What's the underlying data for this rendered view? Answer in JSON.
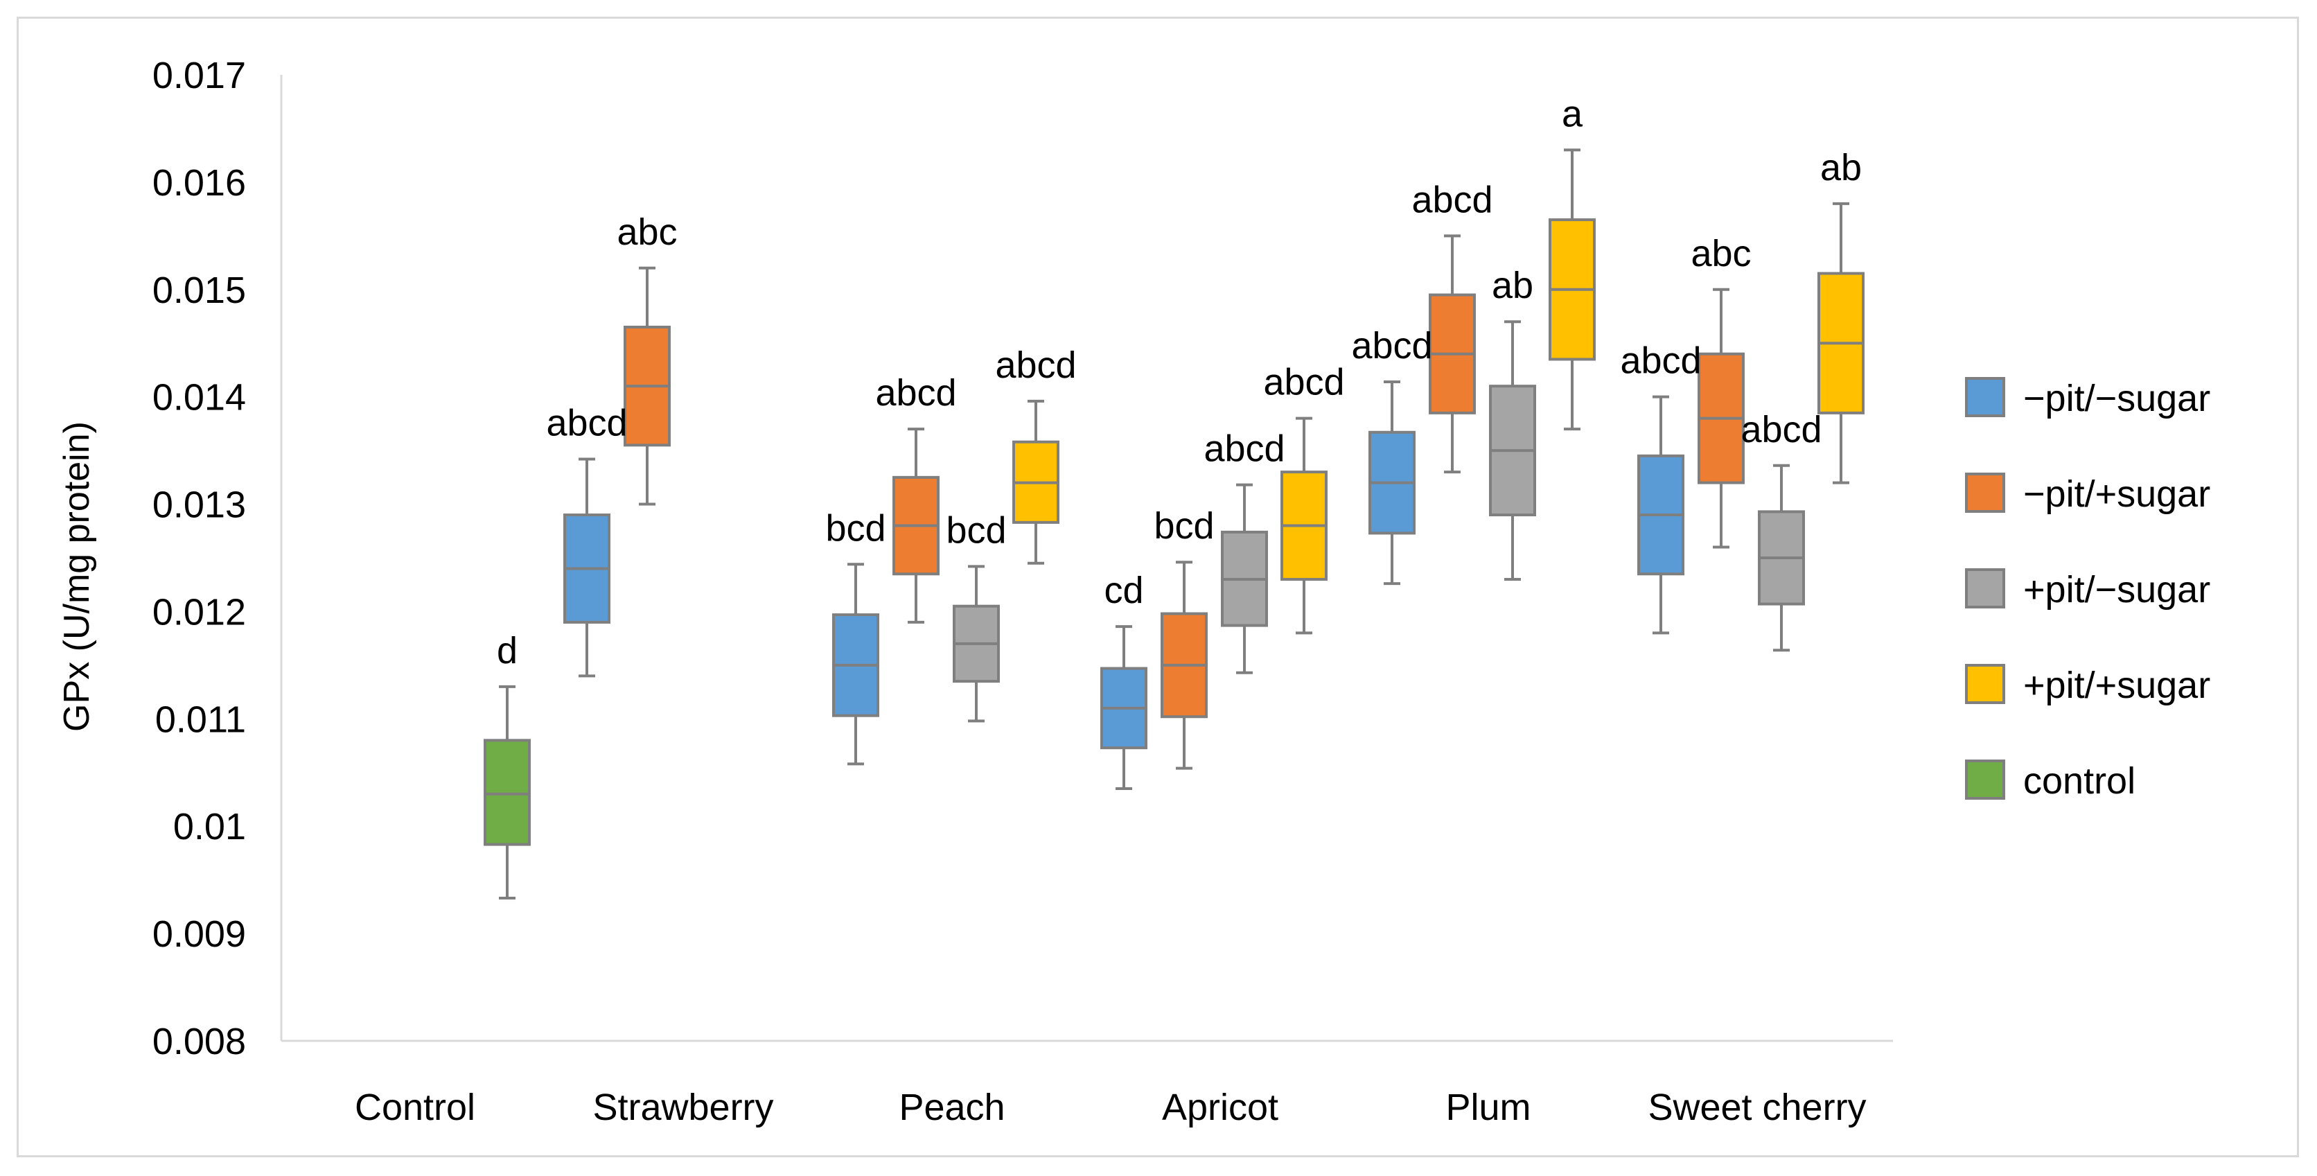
{
  "chart_data": {
    "type": "boxplot",
    "ylabel": "GPx (U/mg protein)",
    "xlabel": "",
    "ylim": [
      0.008,
      0.017
    ],
    "yticks": [
      "0.008",
      "0.009",
      "0.01",
      "0.011",
      "0.012",
      "0.013",
      "0.014",
      "0.015",
      "0.016",
      "0.017"
    ],
    "categories": [
      "Control",
      "Strawberry",
      "Peach",
      "Apricot",
      "Plum",
      "Sweet cherry"
    ],
    "legend_position": "right",
    "series": [
      {
        "key": "mpms",
        "name": "−pit/−sugar",
        "color": "#5b9bd5"
      },
      {
        "key": "mpps",
        "name": "−pit/+sugar",
        "color": "#ed7d31"
      },
      {
        "key": "ppms",
        "name": "+pit/−sugar",
        "color": "#a5a5a5"
      },
      {
        "key": "ppps",
        "name": "+pit/+sugar",
        "color": "#ffc000"
      },
      {
        "key": "ctrl",
        "name": "control",
        "color": "#70ad47"
      }
    ],
    "boxes": [
      {
        "category": "Control",
        "series": "ctrl",
        "min": 0.00933,
        "q1": 0.00983,
        "median": 0.0103,
        "q3": 0.0108,
        "max": 0.0113,
        "label": "d"
      },
      {
        "category": "Strawberry",
        "series": "mpms",
        "min": 0.0114,
        "q1": 0.0119,
        "median": 0.0124,
        "q3": 0.0129,
        "max": 0.01342,
        "label": "abcd"
      },
      {
        "category": "Strawberry",
        "series": "mpps",
        "min": 0.013,
        "q1": 0.01355,
        "median": 0.0141,
        "q3": 0.01465,
        "max": 0.0152,
        "label": "abc"
      },
      {
        "category": "Peach",
        "series": "mpms",
        "min": 0.01058,
        "q1": 0.01103,
        "median": 0.0115,
        "q3": 0.01197,
        "max": 0.01244,
        "label": "bcd"
      },
      {
        "category": "Peach",
        "series": "mpps",
        "min": 0.0119,
        "q1": 0.01235,
        "median": 0.0128,
        "q3": 0.01325,
        "max": 0.0137,
        "label": "abcd"
      },
      {
        "category": "Peach",
        "series": "ppms",
        "min": 0.01098,
        "q1": 0.01135,
        "median": 0.0117,
        "q3": 0.01205,
        "max": 0.01242,
        "label": "bcd"
      },
      {
        "category": "Peach",
        "series": "ppps",
        "min": 0.01245,
        "q1": 0.01283,
        "median": 0.0132,
        "q3": 0.01358,
        "max": 0.01396,
        "label": "abcd"
      },
      {
        "category": "Apricot",
        "series": "mpms",
        "min": 0.01035,
        "q1": 0.01073,
        "median": 0.0111,
        "q3": 0.01147,
        "max": 0.01186,
        "label": "cd"
      },
      {
        "category": "Apricot",
        "series": "mpps",
        "min": 0.01054,
        "q1": 0.01102,
        "median": 0.0115,
        "q3": 0.01198,
        "max": 0.01246,
        "label": "bcd"
      },
      {
        "category": "Apricot",
        "series": "ppms",
        "min": 0.01143,
        "q1": 0.01187,
        "median": 0.0123,
        "q3": 0.01274,
        "max": 0.01318,
        "label": "abcd"
      },
      {
        "category": "Apricot",
        "series": "ppps",
        "min": 0.0118,
        "q1": 0.0123,
        "median": 0.0128,
        "q3": 0.0133,
        "max": 0.0138,
        "label": "abcd"
      },
      {
        "category": "Plum",
        "series": "mpms",
        "min": 0.01226,
        "q1": 0.01273,
        "median": 0.0132,
        "q3": 0.01367,
        "max": 0.01414,
        "label": "abcd"
      },
      {
        "category": "Plum",
        "series": "mpps",
        "min": 0.0133,
        "q1": 0.01385,
        "median": 0.0144,
        "q3": 0.01495,
        "max": 0.0155,
        "label": "abcd"
      },
      {
        "category": "Plum",
        "series": "ppms",
        "min": 0.0123,
        "q1": 0.0129,
        "median": 0.0135,
        "q3": 0.0141,
        "max": 0.0147,
        "label": "ab"
      },
      {
        "category": "Plum",
        "series": "ppps",
        "min": 0.0137,
        "q1": 0.01435,
        "median": 0.015,
        "q3": 0.01565,
        "max": 0.0163,
        "label": "a"
      },
      {
        "category": "Sweet cherry",
        "series": "mpms",
        "min": 0.0118,
        "q1": 0.01235,
        "median": 0.0129,
        "q3": 0.01345,
        "max": 0.014,
        "label": "abcd"
      },
      {
        "category": "Sweet cherry",
        "series": "mpps",
        "min": 0.0126,
        "q1": 0.0132,
        "median": 0.0138,
        "q3": 0.0144,
        "max": 0.015,
        "label": "abc"
      },
      {
        "category": "Sweet cherry",
        "series": "ppms",
        "min": 0.01164,
        "q1": 0.01207,
        "median": 0.0125,
        "q3": 0.01293,
        "max": 0.01336,
        "label": "abcd"
      },
      {
        "category": "Sweet cherry",
        "series": "ppps",
        "min": 0.0132,
        "q1": 0.01385,
        "median": 0.0145,
        "q3": 0.01515,
        "max": 0.0158,
        "label": "ab"
      }
    ]
  }
}
